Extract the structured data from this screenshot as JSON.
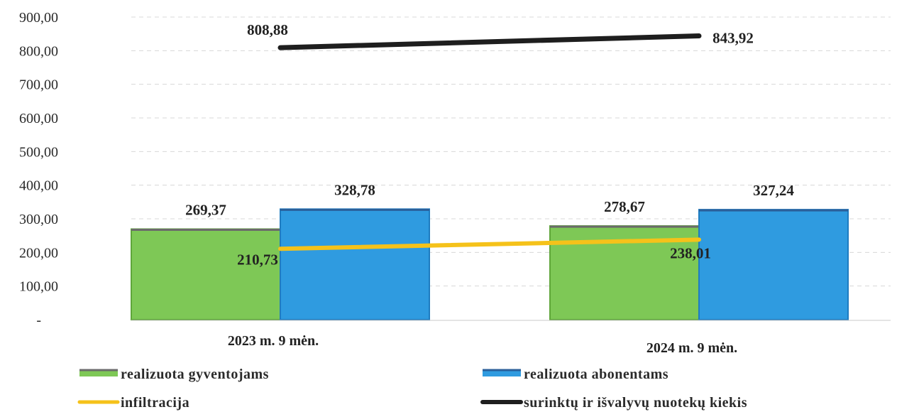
{
  "chart_data": {
    "type": "bar",
    "title": "",
    "xlabel": "",
    "ylabel": "",
    "ylim": [
      0,
      900
    ],
    "yticks": [
      0,
      100,
      200,
      300,
      400,
      500,
      600,
      700,
      800,
      900
    ],
    "ytick_labels": [
      "-",
      "100,00",
      "200,00",
      "300,00",
      "400,00",
      "500,00",
      "600,00",
      "700,00",
      "800,00",
      "900,00"
    ],
    "categories": [
      "2023 m. 9 mėn.",
      "2024 m. 9 mėn."
    ],
    "grid": true,
    "legend_position": "bottom",
    "series": [
      {
        "name": "realizuota gyventojams",
        "type": "bar",
        "color": "#7ec856",
        "values": [
          269.37,
          278.67
        ],
        "labels": [
          "269,37",
          "278,67"
        ]
      },
      {
        "name": "realizuota abonentams",
        "type": "bar",
        "color": "#2f9be0",
        "values": [
          328.78,
          327.24
        ],
        "labels": [
          "328,78",
          "327,24"
        ]
      },
      {
        "name": "infiltracija",
        "type": "line",
        "color": "#f5c21a",
        "values": [
          210.73,
          238.01
        ],
        "labels": [
          "210,73",
          "238,01"
        ]
      },
      {
        "name": "surinktų ir išvalyvų nuotekų kiekis",
        "type": "line",
        "color": "#1e1e1e",
        "values": [
          808.88,
          843.92
        ],
        "labels": [
          "808,88",
          "843,92"
        ]
      }
    ]
  }
}
